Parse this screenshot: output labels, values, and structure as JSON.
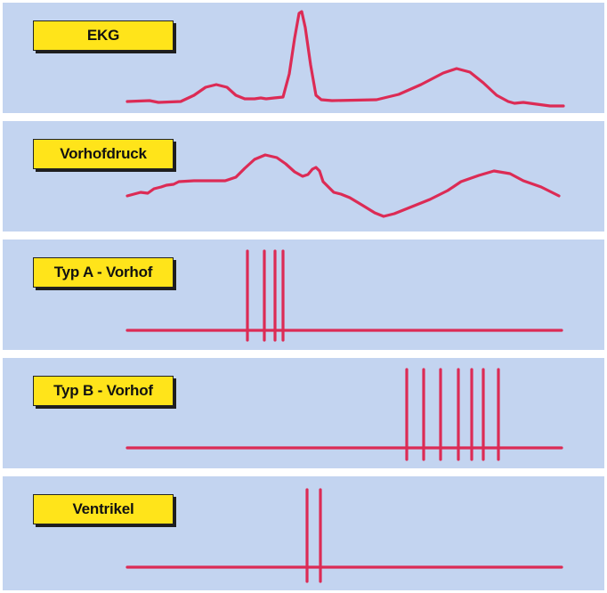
{
  "panels": [
    {
      "id": "ekg",
      "label": "EKG"
    },
    {
      "id": "vorhofdruck",
      "label": "Vorhofdruck"
    },
    {
      "id": "typ-a",
      "label": "Typ A - Vorhof"
    },
    {
      "id": "typ-b",
      "label": "Typ B - Vorhof"
    },
    {
      "id": "ventrikel",
      "label": "Ventrikel"
    }
  ],
  "colors": {
    "panel_background": "#c3d4f0",
    "label_background": "#ffe41a",
    "trace": "#dc2b55"
  }
}
